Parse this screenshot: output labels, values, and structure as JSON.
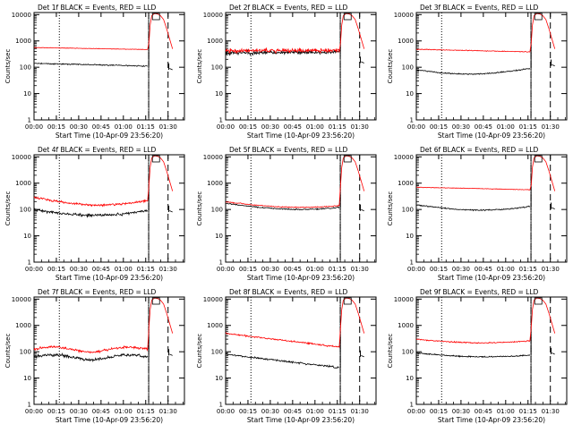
{
  "figure": {
    "background": "#ffffff",
    "colors": {
      "events": "#000000",
      "lld": "#ff0000"
    }
  },
  "chart_data": [
    {
      "type": "line",
      "title": "Det 1f BLACK = Events, RED = LLD",
      "xlabel": "Start Time (10-Apr-09 23:56:20)",
      "ylabel": "Counts/sec",
      "yscale": "log",
      "ylim": [
        1,
        12000
      ],
      "xlim_min": [
        0,
        101
      ],
      "x_ticks": [
        "00:00",
        "00:15",
        "00:30",
        "00:45",
        "01:00",
        "01:15",
        "01:30"
      ],
      "y_ticks": [
        "1",
        "10",
        "100",
        "1000",
        "10000"
      ],
      "grid": false,
      "dotted_lines_min": [
        17,
        77
      ],
      "dashed_lines_min": [
        77,
        90
      ],
      "series": [
        {
          "color": "#000000",
          "profile": "flat",
          "start": 140,
          "mid": 115,
          "end": 110,
          "noise": 0.03,
          "spike": 100
        },
        {
          "color": "#ff0000",
          "profile": "flat",
          "start": 560,
          "mid": 480,
          "end": 470,
          "noise": 0.012
        }
      ]
    },
    {
      "type": "line",
      "title": "Det 2f BLACK = Events, RED = LLD",
      "xlabel": "Start Time (10-Apr-09 23:56:20)",
      "ylabel": "Counts/sec",
      "yscale": "log",
      "ylim": [
        1,
        12000
      ],
      "xlim_min": [
        0,
        101
      ],
      "x_ticks": [
        "00:00",
        "00:15",
        "00:30",
        "00:45",
        "01:00",
        "01:15",
        "01:30"
      ],
      "y_ticks": [
        "1",
        "10",
        "100",
        "1000",
        "10000"
      ],
      "grid": false,
      "dotted_lines_min": [
        17,
        77
      ],
      "dashed_lines_min": [
        77,
        90
      ],
      "series": [
        {
          "color": "#000000",
          "profile": "flat",
          "start": 350,
          "mid": 350,
          "end": 380,
          "noise": 0.1,
          "spike": 180
        },
        {
          "color": "#ff0000",
          "profile": "flat",
          "start": 420,
          "mid": 420,
          "end": 440,
          "noise": 0.12
        }
      ]
    },
    {
      "type": "line",
      "title": "Det 3f BLACK = Events, RED = LLD",
      "xlabel": "Start Time (10-Apr-09 23:56:20)",
      "ylabel": "Counts/sec",
      "yscale": "log",
      "ylim": [
        1,
        12000
      ],
      "xlim_min": [
        0,
        101
      ],
      "x_ticks": [
        "00:00",
        "00:15",
        "00:30",
        "00:45",
        "01:00",
        "01:15",
        "01:30"
      ],
      "y_ticks": [
        "1",
        "10",
        "100",
        "1000",
        "10000"
      ],
      "grid": false,
      "dotted_lines_min": [
        17,
        77
      ],
      "dashed_lines_min": [
        77,
        90
      ],
      "series": [
        {
          "color": "#000000",
          "profile": "bowl",
          "start": 80,
          "mid": 55,
          "end": 90,
          "noise": 0.03,
          "spike": 140
        },
        {
          "color": "#ff0000",
          "profile": "flat",
          "start": 480,
          "mid": 420,
          "end": 380,
          "noise": 0.02
        }
      ]
    },
    {
      "type": "line",
      "title": "Det 4f BLACK = Events, RED = LLD",
      "xlabel": "Start Time (10-Apr-09 23:56:20)",
      "ylabel": "Counts/sec",
      "yscale": "log",
      "ylim": [
        1,
        12000
      ],
      "xlim_min": [
        0,
        101
      ],
      "x_ticks": [
        "00:00",
        "00:15",
        "00:30",
        "00:45",
        "01:00",
        "01:15",
        "01:30"
      ],
      "y_ticks": [
        "1",
        "10",
        "100",
        "1000",
        "10000"
      ],
      "grid": false,
      "dotted_lines_min": [
        17,
        77
      ],
      "dashed_lines_min": [
        77,
        90
      ],
      "series": [
        {
          "color": "#000000",
          "profile": "bowl",
          "start": 100,
          "mid": 60,
          "end": 90,
          "noise": 0.07,
          "spike": 100
        },
        {
          "color": "#ff0000",
          "profile": "bowl",
          "start": 280,
          "mid": 150,
          "end": 220,
          "noise": 0.06
        }
      ]
    },
    {
      "type": "line",
      "title": "Det 5f BLACK = Events, RED = LLD",
      "xlabel": "Start Time (10-Apr-09 23:56:20)",
      "ylabel": "Counts/sec",
      "yscale": "log",
      "ylim": [
        1,
        12000
      ],
      "xlim_min": [
        0,
        101
      ],
      "x_ticks": [
        "00:00",
        "00:15",
        "00:30",
        "00:45",
        "01:00",
        "01:15",
        "01:30"
      ],
      "y_ticks": [
        "1",
        "10",
        "100",
        "1000",
        "10000"
      ],
      "grid": false,
      "dotted_lines_min": [
        17,
        77
      ],
      "dashed_lines_min": [
        77,
        90
      ],
      "series": [
        {
          "color": "#000000",
          "profile": "bowl",
          "start": 170,
          "mid": 105,
          "end": 120,
          "noise": 0.03,
          "spike": 110
        },
        {
          "color": "#ff0000",
          "profile": "bowl",
          "start": 195,
          "mid": 125,
          "end": 140,
          "noise": 0.025
        }
      ]
    },
    {
      "type": "line",
      "title": "Det 6f BLACK = Events, RED = LLD",
      "xlabel": "Start Time (10-Apr-09 23:56:20)",
      "ylabel": "Counts/sec",
      "yscale": "log",
      "ylim": [
        1,
        12000
      ],
      "xlim_min": [
        0,
        101
      ],
      "x_ticks": [
        "00:00",
        "00:15",
        "00:30",
        "00:45",
        "01:00",
        "01:15",
        "01:30"
      ],
      "y_ticks": [
        "1",
        "10",
        "100",
        "1000",
        "10000"
      ],
      "grid": false,
      "dotted_lines_min": [
        17,
        77
      ],
      "dashed_lines_min": [
        77,
        90
      ],
      "series": [
        {
          "color": "#000000",
          "profile": "bowl",
          "start": 150,
          "mid": 95,
          "end": 130,
          "noise": 0.03,
          "spike": 130
        },
        {
          "color": "#ff0000",
          "profile": "flat",
          "start": 700,
          "mid": 580,
          "end": 560,
          "noise": 0.015
        }
      ]
    },
    {
      "type": "line",
      "title": "Det 7f BLACK = Events, RED = LLD",
      "xlabel": "Start Time (10-Apr-09 23:56:20)",
      "ylabel": "Counts/sec",
      "yscale": "log",
      "ylim": [
        1,
        12000
      ],
      "xlim_min": [
        0,
        101
      ],
      "x_ticks": [
        "00:00",
        "00:15",
        "00:30",
        "00:45",
        "01:00",
        "01:15",
        "01:30"
      ],
      "y_ticks": [
        "1",
        "10",
        "100",
        "1000",
        "10000"
      ],
      "grid": false,
      "dotted_lines_min": [
        17,
        77
      ],
      "dashed_lines_min": [
        77,
        90
      ],
      "series": [
        {
          "color": "#000000",
          "profile": "wave",
          "start": 70,
          "mid": 55,
          "end": 65,
          "noise": 0.08,
          "spike": 90
        },
        {
          "color": "#ff0000",
          "profile": "wave",
          "start": 150,
          "mid": 110,
          "end": 120,
          "noise": 0.07
        }
      ]
    },
    {
      "type": "line",
      "title": "Det 8f BLACK = Events, RED = LLD",
      "xlabel": "Start Time (10-Apr-09 23:56:20)",
      "ylabel": "Counts/sec",
      "yscale": "log",
      "ylim": [
        1,
        12000
      ],
      "xlim_min": [
        0,
        101
      ],
      "x_ticks": [
        "00:00",
        "00:15",
        "00:30",
        "00:45",
        "01:00",
        "01:15",
        "01:30"
      ],
      "y_ticks": [
        "1",
        "10",
        "100",
        "1000",
        "10000"
      ],
      "grid": false,
      "dotted_lines_min": [
        17,
        77
      ],
      "dashed_lines_min": [
        77,
        90
      ],
      "series": [
        {
          "color": "#000000",
          "profile": "decay",
          "start": 80,
          "mid": 50,
          "end": 25,
          "noise": 0.05,
          "spike": 80
        },
        {
          "color": "#ff0000",
          "profile": "decay",
          "start": 500,
          "mid": 280,
          "end": 150,
          "noise": 0.04
        }
      ]
    },
    {
      "type": "line",
      "title": "Det 9f BLACK = Events, RED = LLD",
      "xlabel": "Start Time (10-Apr-09 23:56:20)",
      "ylabel": "Counts/sec",
      "yscale": "log",
      "ylim": [
        1,
        12000
      ],
      "xlim_min": [
        0,
        101
      ],
      "x_ticks": [
        "00:00",
        "00:15",
        "00:30",
        "00:45",
        "01:00",
        "01:15",
        "01:30"
      ],
      "y_ticks": [
        "1",
        "10",
        "100",
        "1000",
        "10000"
      ],
      "grid": false,
      "dotted_lines_min": [
        17,
        77
      ],
      "dashed_lines_min": [
        77,
        90
      ],
      "series": [
        {
          "color": "#000000",
          "profile": "bowl",
          "start": 90,
          "mid": 65,
          "end": 75,
          "noise": 0.03,
          "spike": 100
        },
        {
          "color": "#ff0000",
          "profile": "bowl",
          "start": 300,
          "mid": 220,
          "end": 260,
          "noise": 0.03
        }
      ]
    }
  ]
}
